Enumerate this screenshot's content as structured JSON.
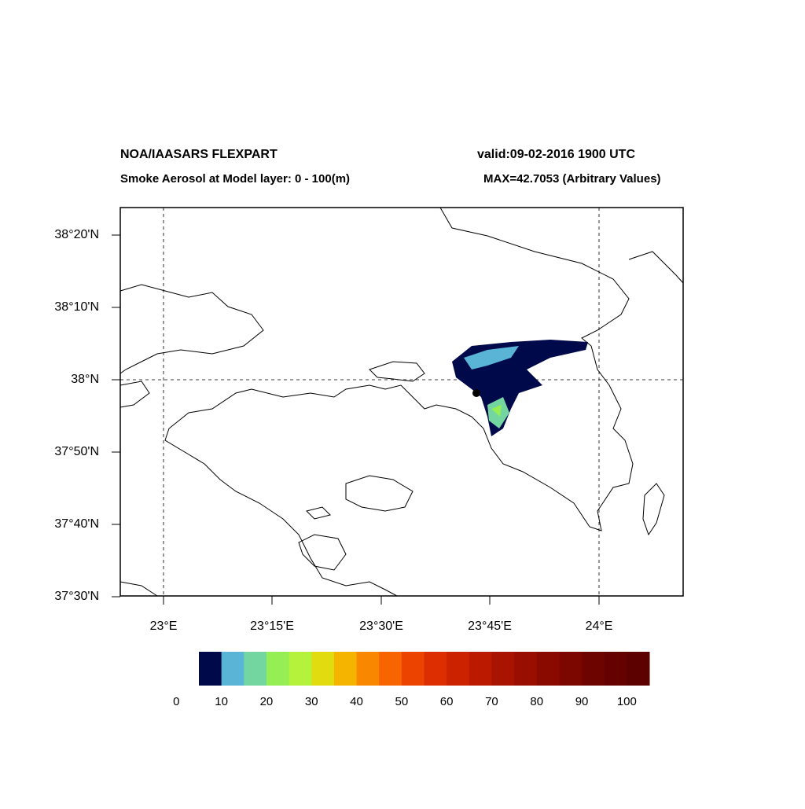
{
  "header": {
    "title": "NOA/IAASARS FLEXPART",
    "valid": "valid:09-02-2016 1900 UTC",
    "subtitle": "Smoke Aerosol at Model layer: 0 - 100(m)",
    "max": "MAX=42.7053 (Arbitrary Values)"
  },
  "map": {
    "lat_labels": [
      "38°20'N",
      "38°10'N",
      "38°N",
      "37°50'N",
      "37°40'N",
      "37°30'N"
    ],
    "lon_labels": [
      "23°E",
      "23°15'E",
      "23°30'E",
      "23°45'E",
      "24°E"
    ]
  },
  "colorbar": {
    "colors": [
      "#000a4a",
      "#5ab4d6",
      "#73d6a0",
      "#96ee55",
      "#b4f23c",
      "#e0dc10",
      "#f5b400",
      "#fa8700",
      "#f86400",
      "#ec4400",
      "#dc2e00",
      "#cc2200",
      "#bb1a00",
      "#a81400",
      "#980e00",
      "#8a0a00",
      "#7c0600",
      "#6e0400",
      "#640200",
      "#5c0000"
    ],
    "labels": [
      0,
      10,
      20,
      30,
      40,
      50,
      60,
      70,
      80,
      90,
      100
    ]
  }
}
